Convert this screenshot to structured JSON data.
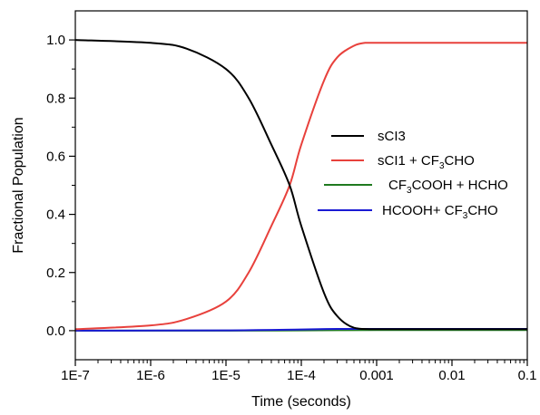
{
  "chart_data": {
    "type": "line",
    "title": "",
    "xlabel": "Time (seconds)",
    "ylabel": "Fractional Population",
    "xscale": "log",
    "xlim": [
      1e-07,
      0.1
    ],
    "ylim": [
      -0.1,
      1.1
    ],
    "x_ticks": [
      "1E-7",
      "1E-6",
      "1E-5",
      "1E-4",
      "0.001",
      "0.01",
      "0.1"
    ],
    "y_ticks": [
      "0.0",
      "0.2",
      "0.4",
      "0.6",
      "0.8",
      "1.0"
    ],
    "grid": false,
    "legend_position": "center-right",
    "legend": [
      {
        "label": "sCI3",
        "color": "#000000"
      },
      {
        "label_parts": [
          "sCI1 + CF",
          "3",
          "CHO"
        ],
        "color": "#e8413c"
      },
      {
        "label_parts": [
          "CF",
          "3",
          "COOH + HCHO"
        ],
        "color": "#1f7a1f"
      },
      {
        "label_parts": [
          "HCOOH+ CF",
          "3",
          "CHO"
        ],
        "color": "#1a1ad4"
      }
    ],
    "series": [
      {
        "name": "sCI3",
        "color": "#000000",
        "x": [
          1e-07,
          1e-06,
          3e-06,
          1e-05,
          2e-05,
          4e-05,
          7e-05,
          0.0001,
          0.0002,
          0.0003,
          0.0005,
          0.001,
          0.01,
          0.1
        ],
        "y": [
          1.0,
          0.99,
          0.97,
          0.9,
          0.8,
          0.64,
          0.5,
          0.36,
          0.13,
          0.05,
          0.01,
          0.005,
          0.005,
          0.005
        ]
      },
      {
        "name": "sCI1 + CF3CHO",
        "color": "#e8413c",
        "x": [
          1e-07,
          1e-06,
          3e-06,
          1e-05,
          2e-05,
          4e-05,
          7e-05,
          0.0001,
          0.0002,
          0.0003,
          0.0005,
          0.0007,
          0.001,
          0.01,
          0.1
        ],
        "y": [
          0.005,
          0.018,
          0.04,
          0.1,
          0.2,
          0.36,
          0.5,
          0.64,
          0.86,
          0.94,
          0.98,
          0.99,
          0.99,
          0.99,
          0.99
        ]
      },
      {
        "name": "CF3COOH + HCHO",
        "color": "#1f7a1f",
        "x": [
          1e-07,
          1e-05,
          0.0001,
          0.001,
          0.01,
          0.1
        ],
        "y": [
          0.0,
          0.0,
          0.001,
          0.002,
          0.002,
          0.002
        ]
      },
      {
        "name": "HCOOH+ CF3CHO",
        "color": "#1a1ad4",
        "x": [
          1e-07,
          1e-05,
          0.0001,
          0.0003,
          0.001,
          0.01,
          0.1
        ],
        "y": [
          0.0,
          0.001,
          0.004,
          0.006,
          0.006,
          0.006,
          0.006
        ]
      }
    ]
  }
}
